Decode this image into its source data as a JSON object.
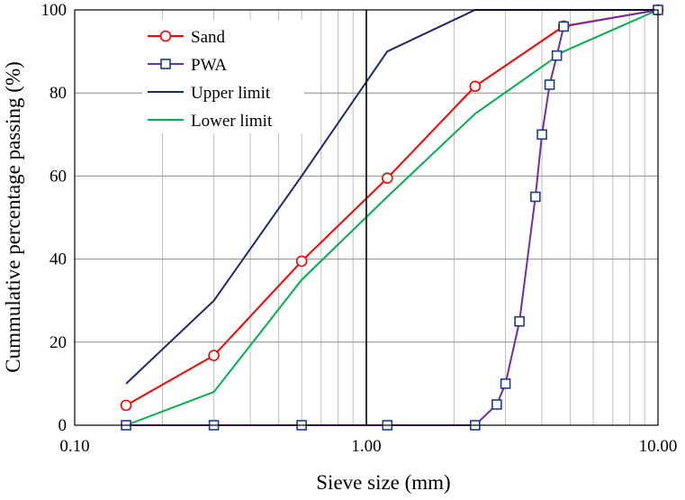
{
  "chart_data": {
    "type": "line",
    "xscale": "log",
    "xlim": [
      0.1,
      10
    ],
    "ylim": [
      0,
      100
    ],
    "xlabel": "Sieve size (mm)",
    "ylabel": "Cummulative percentage passing (%)",
    "xticks": [
      0.1,
      1,
      10
    ],
    "xtick_labels": [
      "0.10",
      "1.00",
      "10.00"
    ],
    "yticks": [
      0,
      20,
      40,
      60,
      80,
      100
    ],
    "ytick_labels": [
      "0",
      "20",
      "40",
      "60",
      "80",
      "100"
    ],
    "grid": true,
    "legend_position": "top-left",
    "series": [
      {
        "name": "Sand",
        "color": "#ff0000",
        "marker": "circle",
        "x": [
          0.15,
          0.3,
          0.6,
          1.18,
          2.36,
          4.75,
          10
        ],
        "y": [
          4.8,
          16.8,
          39.5,
          59.5,
          81.6,
          96.1,
          100
        ]
      },
      {
        "name": "PWA",
        "color": "#7030a0",
        "marker_color": "#1f3c88",
        "marker": "square",
        "x": [
          0.15,
          0.3,
          0.6,
          1.18,
          2.36,
          2.8,
          3.0,
          3.35,
          3.8,
          4.0,
          4.25,
          4.5,
          4.75,
          10
        ],
        "y": [
          0,
          0,
          0,
          0,
          0,
          5,
          10,
          25,
          55,
          70,
          82,
          89,
          96,
          100
        ]
      },
      {
        "name": "Upper limit",
        "color": "#1f2a6b",
        "marker": "none",
        "x": [
          0.15,
          0.3,
          0.6,
          1.18,
          2.36,
          10
        ],
        "y": [
          10,
          30,
          60,
          90,
          100,
          100
        ]
      },
      {
        "name": "Lower limit",
        "color": "#00b050",
        "marker": "none",
        "x": [
          0.15,
          0.3,
          0.6,
          1.18,
          2.36,
          4.75,
          10
        ],
        "y": [
          0,
          8,
          35,
          55,
          75,
          90,
          100
        ]
      }
    ]
  }
}
